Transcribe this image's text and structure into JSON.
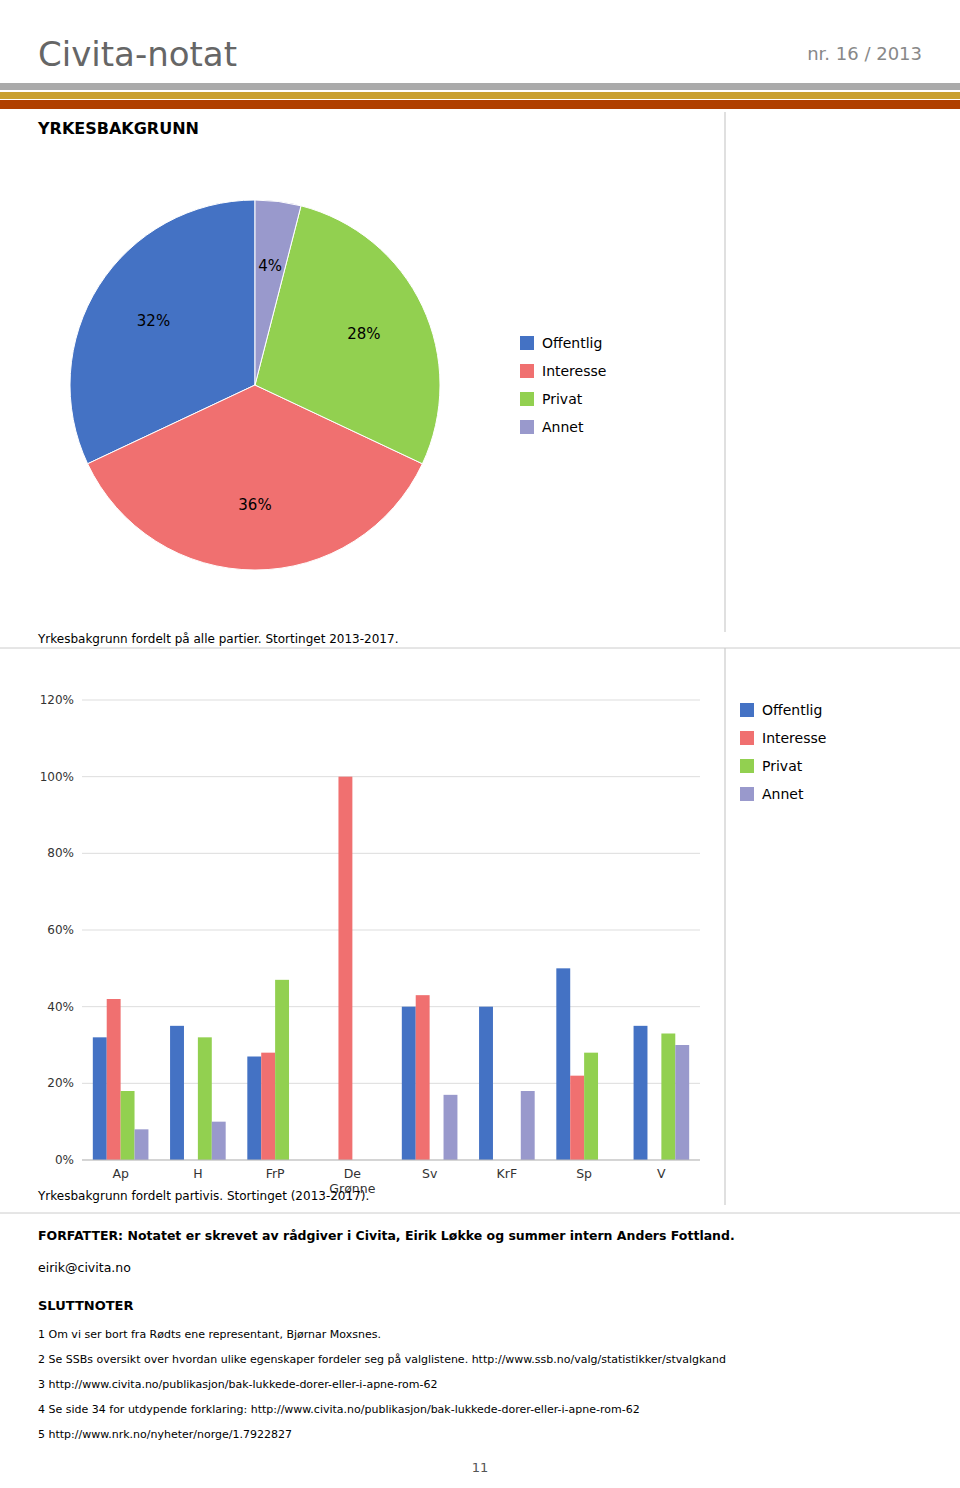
{
  "header_title": "Civita-notat",
  "header_number": "nr. 16 / 2013",
  "section_title": "YRKESBAKGRUNN",
  "chart_data": [
    {
      "type": "pie",
      "caption": "Yrkesbakgrunn fordelt på alle partier. Stortinget 2013-2017.",
      "categories": [
        "Offentlig",
        "Interesse",
        "Privat",
        "Annet"
      ],
      "values": [
        32,
        36,
        28,
        4
      ],
      "value_labels": [
        "32%",
        "36%",
        "28%",
        "4%"
      ],
      "colors": [
        "#4472C4",
        "#F07070",
        "#92D050",
        "#9999CC"
      ],
      "data_labels": true,
      "legend": "right"
    },
    {
      "type": "bar",
      "caption": "Yrkesbakgrunn fordelt partivis. Stortinget (2013-2017).",
      "categories": [
        "Ap",
        "H",
        "FrP",
        "De\nGrønne",
        "Sv",
        "KrF",
        "Sp",
        "V"
      ],
      "series": [
        {
          "name": "Offentlig",
          "color": "#4472C4",
          "values": [
            32,
            35,
            27,
            0,
            40,
            40,
            50,
            35
          ]
        },
        {
          "name": "Interesse",
          "color": "#F07070",
          "values": [
            42,
            0,
            28,
            100,
            43,
            0,
            22,
            0
          ]
        },
        {
          "name": "Privat",
          "color": "#92D050",
          "values": [
            18,
            32,
            47,
            0,
            0,
            0,
            28,
            33
          ]
        },
        {
          "name": "Annet",
          "color": "#9999CC",
          "values": [
            8,
            10,
            0,
            0,
            17,
            18,
            0,
            30
          ]
        }
      ],
      "ylim": [
        0,
        120
      ],
      "yticks": [
        {
          "value": 0,
          "label": "0%"
        },
        {
          "value": 20,
          "label": "20%"
        },
        {
          "value": 40,
          "label": "40%"
        },
        {
          "value": 60,
          "label": "60%"
        },
        {
          "value": 80,
          "label": "80%"
        },
        {
          "value": 100,
          "label": "100%"
        },
        {
          "value": 120,
          "label": "120%"
        }
      ],
      "grid": true,
      "legend": "right"
    }
  ],
  "footer_bold": "FORFATTER: Notatet er skrevet av rådgiver i Civita, Eirik Løkke og summer intern Anders Fottland.",
  "footer_email": "eirik@civita.no",
  "footer_notes_title": "SLUTTNOTER",
  "footer_notes": [
    "1  Om vi ser bort fra Rødts ene representant, Bjørnar Moxsnes.",
    "2  Se SSBs oversikt over hvordan ulike egenskaper fordeler seg på valglistene. http://www.ssb.no/valg/statistikker/stvalgkand",
    "3  http://www.civita.no/publikasjon/bak-lukkede-dorer-eller-i-apne-rom-62",
    "4  Se side 34 for utdypende forklaring: http://www.civita.no/publikasjon/bak-lukkede-dorer-eller-i-apne-rom-62",
    "5  http://www.nrk.no/nyheter/norge/1.7922827"
  ],
  "page_number": "11"
}
